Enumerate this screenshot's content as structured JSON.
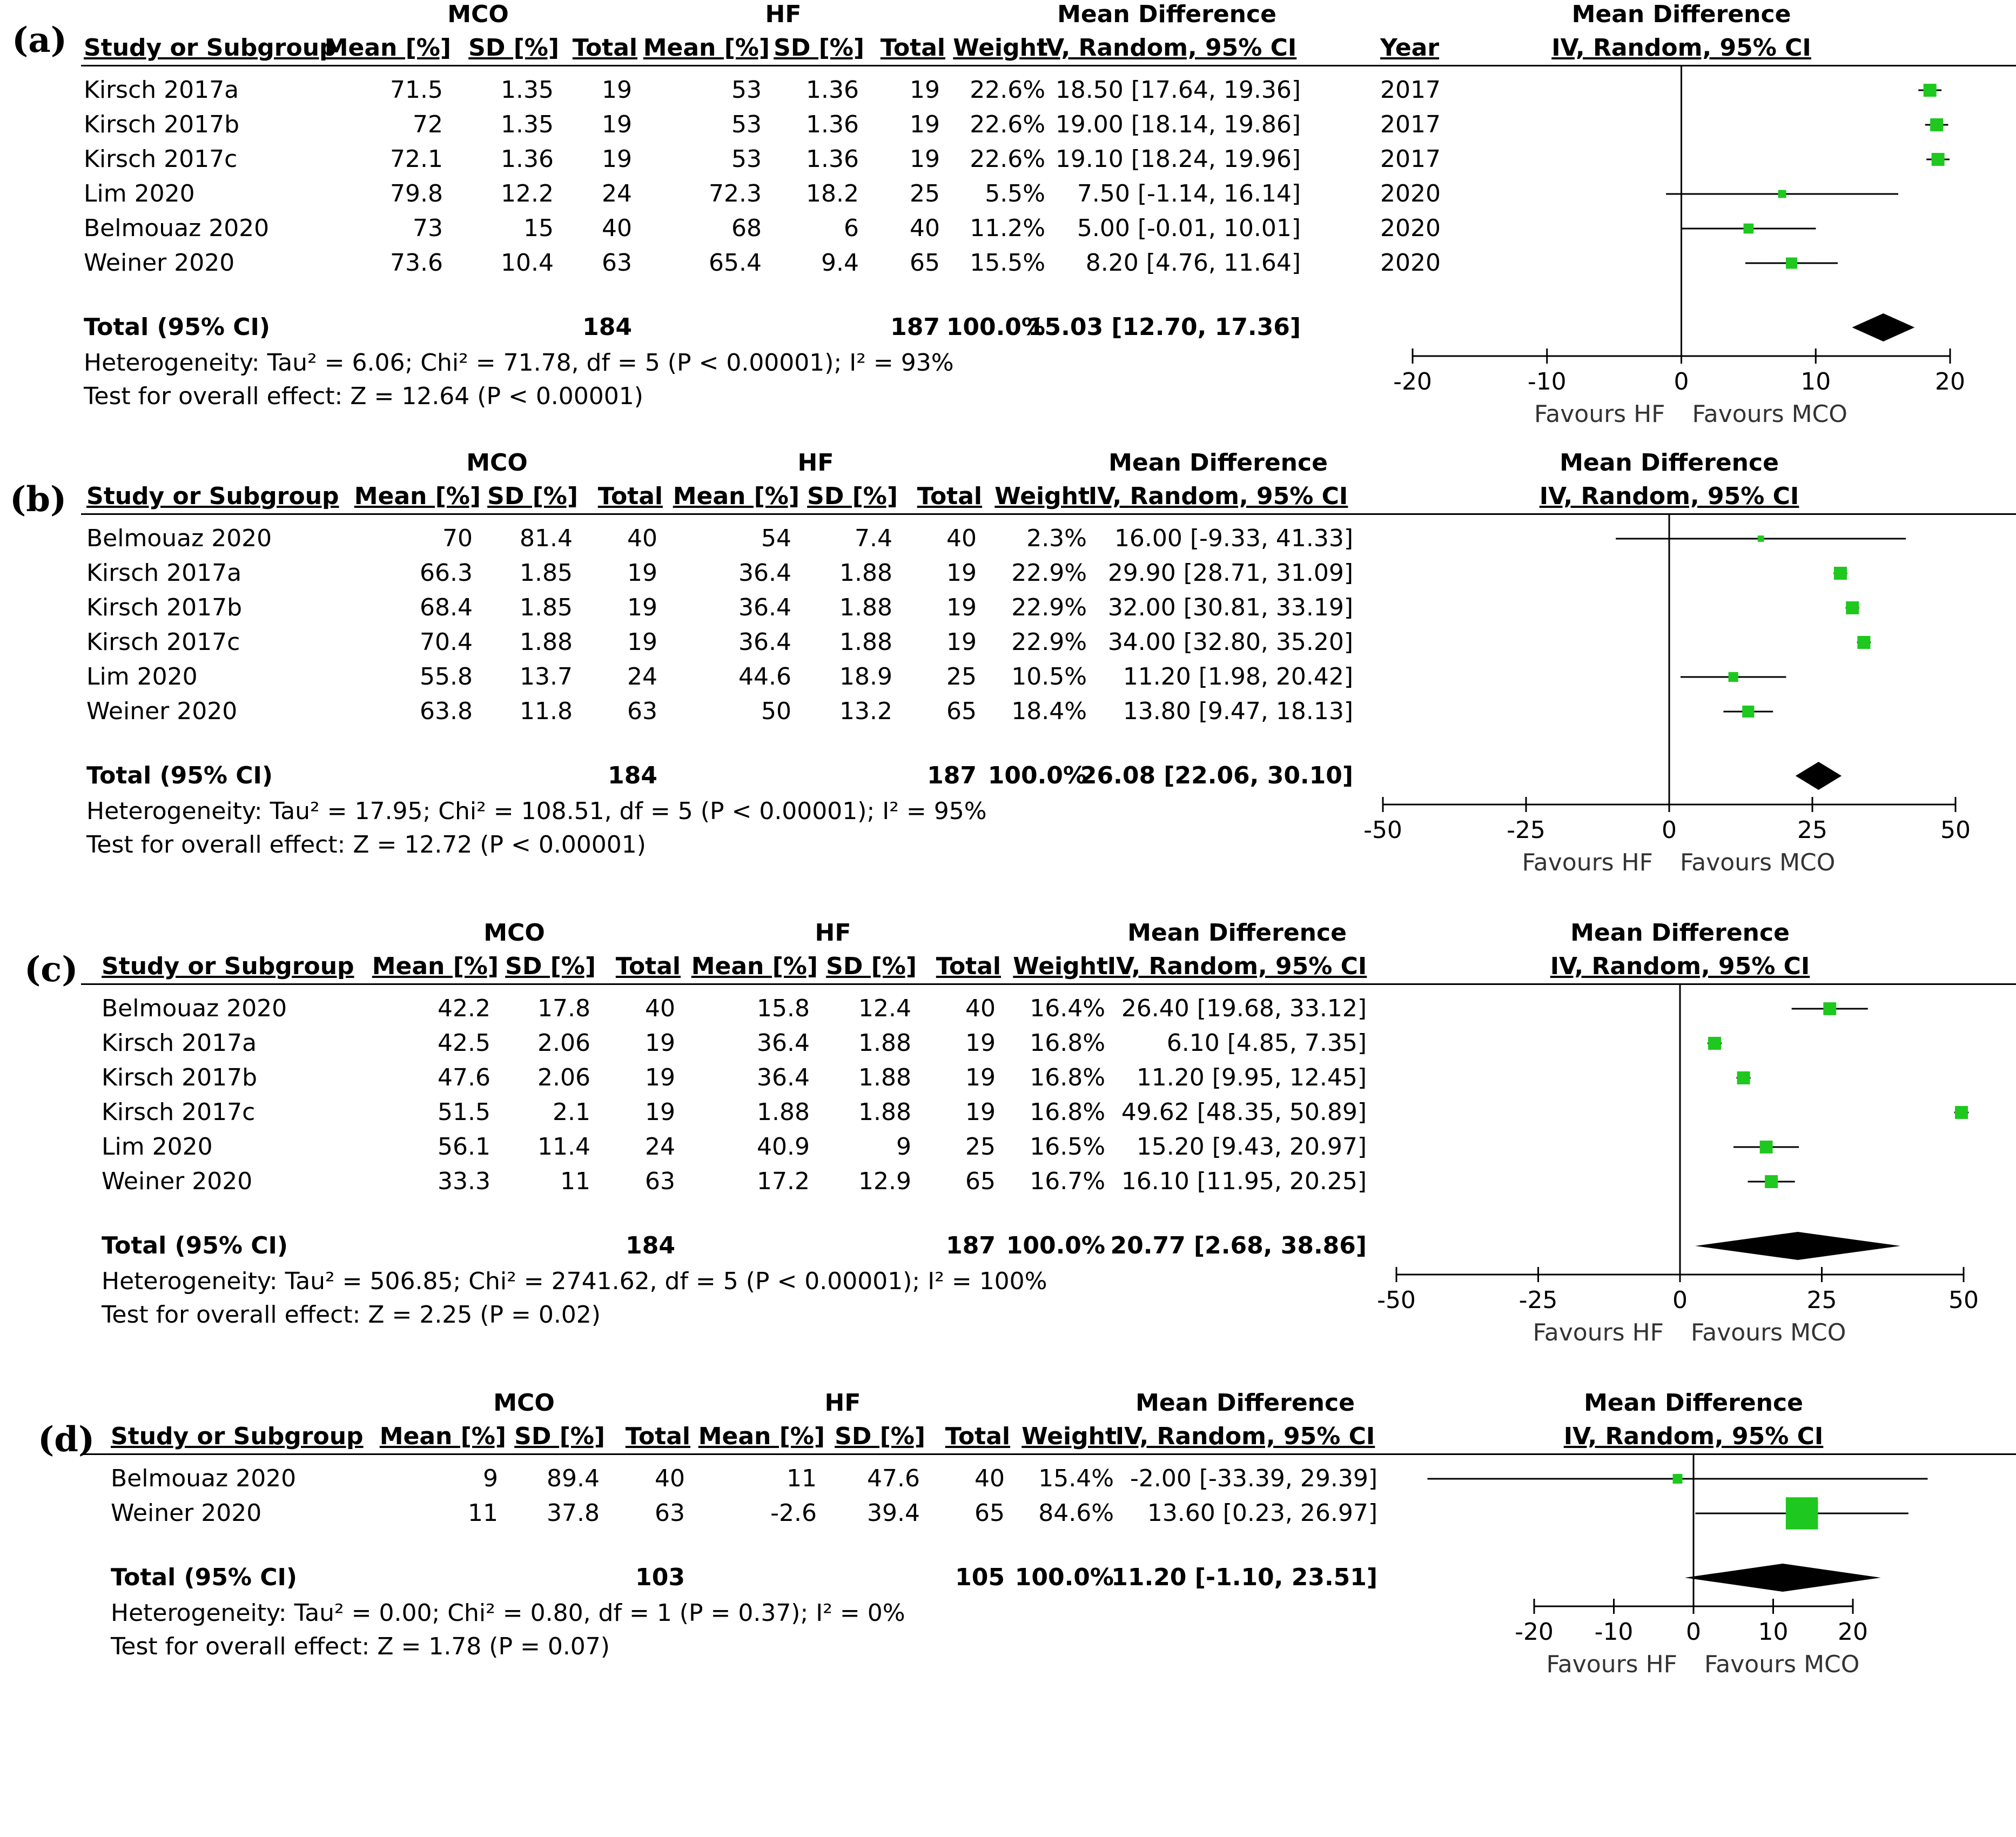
{
  "columns": {
    "study": "Study or Subgroup",
    "mean": "Mean [%]",
    "sd": "SD [%]",
    "total": "Total",
    "weight": "Weight",
    "ci": "IV, Random, 95% CI",
    "year": "Year",
    "group1": "MCO",
    "group2": "HF",
    "effect": "Mean Difference",
    "plot_ci": "IV, Random, 95% CI"
  },
  "panels": [
    {
      "label": "(a)",
      "show_year": true,
      "rows": [
        {
          "study": "Kirsch 2017a",
          "m1": "71.5",
          "sd1": "1.35",
          "n1": "19",
          "m2": "53",
          "sd2": "1.36",
          "n2": "19",
          "weight": "22.6%",
          "ci": "18.50 [17.64, 19.36]",
          "year": "2017"
        },
        {
          "study": "Kirsch 2017b",
          "m1": "72",
          "sd1": "1.35",
          "n1": "19",
          "m2": "53",
          "sd2": "1.36",
          "n2": "19",
          "weight": "22.6%",
          "ci": "19.00 [18.14, 19.86]",
          "year": "2017"
        },
        {
          "study": "Kirsch 2017c",
          "m1": "72.1",
          "sd1": "1.36",
          "n1": "19",
          "m2": "53",
          "sd2": "1.36",
          "n2": "19",
          "weight": "22.6%",
          "ci": "19.10 [18.24, 19.96]",
          "year": "2017"
        },
        {
          "study": "Lim 2020",
          "m1": "79.8",
          "sd1": "12.2",
          "n1": "24",
          "m2": "72.3",
          "sd2": "18.2",
          "n2": "25",
          "weight": "5.5%",
          "ci": "7.50 [-1.14, 16.14]",
          "year": "2020"
        },
        {
          "study": "Belmouaz 2020",
          "m1": "73",
          "sd1": "15",
          "n1": "40",
          "m2": "68",
          "sd2": "6",
          "n2": "40",
          "weight": "11.2%",
          "ci": "5.00 [-0.01, 10.01]",
          "year": "2020"
        },
        {
          "study": "Weiner 2020",
          "m1": "73.6",
          "sd1": "10.4",
          "n1": "63",
          "m2": "65.4",
          "sd2": "9.4",
          "n2": "65",
          "weight": "15.5%",
          "ci": "8.20 [4.76, 11.64]",
          "year": "2020"
        }
      ],
      "total": {
        "label": "Total (95% CI)",
        "n1": "184",
        "n2": "187",
        "weight": "100.0%",
        "ci": "15.03 [12.70, 17.36]"
      },
      "heterogeneity": "Heterogeneity: Tau² = 6.06; Chi² = 71.78, df = 5 (P < 0.00001); I² = 93%",
      "overall": "Test for overall effect: Z = 12.64 (P < 0.00001)",
      "favours_left": "Favours HF",
      "favours_right": "Favours MCO"
    },
    {
      "label": "(b)",
      "show_year": false,
      "rows": [
        {
          "study": "Belmouaz 2020",
          "m1": "70",
          "sd1": "81.4",
          "n1": "40",
          "m2": "54",
          "sd2": "7.4",
          "n2": "40",
          "weight": "2.3%",
          "ci": "16.00 [-9.33, 41.33]"
        },
        {
          "study": "Kirsch 2017a",
          "m1": "66.3",
          "sd1": "1.85",
          "n1": "19",
          "m2": "36.4",
          "sd2": "1.88",
          "n2": "19",
          "weight": "22.9%",
          "ci": "29.90 [28.71, 31.09]"
        },
        {
          "study": "Kirsch 2017b",
          "m1": "68.4",
          "sd1": "1.85",
          "n1": "19",
          "m2": "36.4",
          "sd2": "1.88",
          "n2": "19",
          "weight": "22.9%",
          "ci": "32.00 [30.81, 33.19]"
        },
        {
          "study": "Kirsch 2017c",
          "m1": "70.4",
          "sd1": "1.88",
          "n1": "19",
          "m2": "36.4",
          "sd2": "1.88",
          "n2": "19",
          "weight": "22.9%",
          "ci": "34.00 [32.80, 35.20]"
        },
        {
          "study": "Lim 2020",
          "m1": "55.8",
          "sd1": "13.7",
          "n1": "24",
          "m2": "44.6",
          "sd2": "18.9",
          "n2": "25",
          "weight": "10.5%",
          "ci": "11.20 [1.98, 20.42]"
        },
        {
          "study": "Weiner 2020",
          "m1": "63.8",
          "sd1": "11.8",
          "n1": "63",
          "m2": "50",
          "sd2": "13.2",
          "n2": "65",
          "weight": "18.4%",
          "ci": "13.80 [9.47, 18.13]"
        }
      ],
      "total": {
        "label": "Total (95% CI)",
        "n1": "184",
        "n2": "187",
        "weight": "100.0%",
        "ci": "26.08 [22.06, 30.10]"
      },
      "heterogeneity": "Heterogeneity: Tau² = 17.95; Chi² = 108.51, df = 5 (P < 0.00001); I² = 95%",
      "overall": "Test for overall effect: Z = 12.72 (P < 0.00001)",
      "favours_left": "Favours HF",
      "favours_right": "Favours MCO"
    },
    {
      "label": "(c)",
      "show_year": false,
      "rows": [
        {
          "study": "Belmouaz 2020",
          "m1": "42.2",
          "sd1": "17.8",
          "n1": "40",
          "m2": "15.8",
          "sd2": "12.4",
          "n2": "40",
          "weight": "16.4%",
          "ci": "26.40 [19.68, 33.12]"
        },
        {
          "study": "Kirsch 2017a",
          "m1": "42.5",
          "sd1": "2.06",
          "n1": "19",
          "m2": "36.4",
          "sd2": "1.88",
          "n2": "19",
          "weight": "16.8%",
          "ci": "6.10 [4.85, 7.35]"
        },
        {
          "study": "Kirsch 2017b",
          "m1": "47.6",
          "sd1": "2.06",
          "n1": "19",
          "m2": "36.4",
          "sd2": "1.88",
          "n2": "19",
          "weight": "16.8%",
          "ci": "11.20 [9.95, 12.45]"
        },
        {
          "study": "Kirsch 2017c",
          "m1": "51.5",
          "sd1": "2.1",
          "n1": "19",
          "m2": "1.88",
          "sd2": "1.88",
          "n2": "19",
          "weight": "16.8%",
          "ci": "49.62 [48.35, 50.89]"
        },
        {
          "study": "Lim 2020",
          "m1": "56.1",
          "sd1": "11.4",
          "n1": "24",
          "m2": "40.9",
          "sd2": "9",
          "n2": "25",
          "weight": "16.5%",
          "ci": "15.20 [9.43, 20.97]"
        },
        {
          "study": "Weiner 2020",
          "m1": "33.3",
          "sd1": "11",
          "n1": "63",
          "m2": "17.2",
          "sd2": "12.9",
          "n2": "65",
          "weight": "16.7%",
          "ci": "16.10 [11.95, 20.25]"
        }
      ],
      "total": {
        "label": "Total (95% CI)",
        "n1": "184",
        "n2": "187",
        "weight": "100.0%",
        "ci": "20.77 [2.68, 38.86]"
      },
      "heterogeneity": "Heterogeneity: Tau² = 506.85; Chi² = 2741.62, df = 5 (P < 0.00001); I² = 100%",
      "overall": "Test for overall effect: Z = 2.25 (P = 0.02)",
      "favours_left": "Favours HF",
      "favours_right": "Favours MCO"
    },
    {
      "label": "(d)",
      "show_year": false,
      "rows": [
        {
          "study": "Belmouaz 2020",
          "m1": "9",
          "sd1": "89.4",
          "n1": "40",
          "m2": "11",
          "sd2": "47.6",
          "n2": "40",
          "weight": "15.4%",
          "ci": "-2.00 [-33.39, 29.39]"
        },
        {
          "study": "Weiner 2020",
          "m1": "11",
          "sd1": "37.8",
          "n1": "63",
          "m2": "-2.6",
          "sd2": "39.4",
          "n2": "65",
          "weight": "84.6%",
          "ci": "13.60 [0.23, 26.97]"
        }
      ],
      "total": {
        "label": "Total (95% CI)",
        "n1": "103",
        "n2": "105",
        "weight": "100.0%",
        "ci": "11.20 [-1.10, 23.51]"
      },
      "heterogeneity": "Heterogeneity: Tau² = 0.00; Chi² = 0.80, df = 1 (P = 0.37); I² = 0%",
      "overall": "Test for overall effect: Z = 1.78 (P = 0.07)",
      "favours_left": "Favours HF",
      "favours_right": "Favours MCO"
    }
  ],
  "colors": {
    "marker": "#1ec81e",
    "diamond": "#000000",
    "line": "#000000"
  },
  "chart_data": [
    {
      "type": "forest",
      "title": "(a)",
      "xlabel_left": "Favours HF",
      "xlabel_right": "Favours MCO",
      "xlim": [
        -20,
        20
      ],
      "ticks": [
        -20,
        -10,
        0,
        10,
        20
      ],
      "studies": [
        {
          "name": "Kirsch 2017a",
          "est": 18.5,
          "lo": 17.64,
          "hi": 19.36,
          "weight": 22.6
        },
        {
          "name": "Kirsch 2017b",
          "est": 19.0,
          "lo": 18.14,
          "hi": 19.86,
          "weight": 22.6
        },
        {
          "name": "Kirsch 2017c",
          "est": 19.1,
          "lo": 18.24,
          "hi": 19.96,
          "weight": 22.6
        },
        {
          "name": "Lim 2020",
          "est": 7.5,
          "lo": -1.14,
          "hi": 16.14,
          "weight": 5.5
        },
        {
          "name": "Belmouaz 2020",
          "est": 5.0,
          "lo": -0.01,
          "hi": 10.01,
          "weight": 11.2
        },
        {
          "name": "Weiner 2020",
          "est": 8.2,
          "lo": 4.76,
          "hi": 11.64,
          "weight": 15.5
        }
      ],
      "pooled": {
        "est": 15.03,
        "lo": 12.7,
        "hi": 17.36
      }
    },
    {
      "type": "forest",
      "title": "(b)",
      "xlabel_left": "Favours HF",
      "xlabel_right": "Favours MCO",
      "xlim": [
        -50,
        50
      ],
      "ticks": [
        -50,
        -25,
        0,
        25,
        50
      ],
      "studies": [
        {
          "name": "Belmouaz 2020",
          "est": 16.0,
          "lo": -9.33,
          "hi": 41.33,
          "weight": 2.3
        },
        {
          "name": "Kirsch 2017a",
          "est": 29.9,
          "lo": 28.71,
          "hi": 31.09,
          "weight": 22.9
        },
        {
          "name": "Kirsch 2017b",
          "est": 32.0,
          "lo": 30.81,
          "hi": 33.19,
          "weight": 22.9
        },
        {
          "name": "Kirsch 2017c",
          "est": 34.0,
          "lo": 32.8,
          "hi": 35.2,
          "weight": 22.9
        },
        {
          "name": "Lim 2020",
          "est": 11.2,
          "lo": 1.98,
          "hi": 20.42,
          "weight": 10.5
        },
        {
          "name": "Weiner 2020",
          "est": 13.8,
          "lo": 9.47,
          "hi": 18.13,
          "weight": 18.4
        }
      ],
      "pooled": {
        "est": 26.08,
        "lo": 22.06,
        "hi": 30.1
      }
    },
    {
      "type": "forest",
      "title": "(c)",
      "xlabel_left": "Favours HF",
      "xlabel_right": "Favours MCO",
      "xlim": [
        -50,
        50
      ],
      "ticks": [
        -50,
        -25,
        0,
        25,
        50
      ],
      "studies": [
        {
          "name": "Belmouaz 2020",
          "est": 26.4,
          "lo": 19.68,
          "hi": 33.12,
          "weight": 16.4
        },
        {
          "name": "Kirsch 2017a",
          "est": 6.1,
          "lo": 4.85,
          "hi": 7.35,
          "weight": 16.8
        },
        {
          "name": "Kirsch 2017b",
          "est": 11.2,
          "lo": 9.95,
          "hi": 12.45,
          "weight": 16.8
        },
        {
          "name": "Kirsch 2017c",
          "est": 49.62,
          "lo": 48.35,
          "hi": 50.89,
          "weight": 16.8
        },
        {
          "name": "Lim 2020",
          "est": 15.2,
          "lo": 9.43,
          "hi": 20.97,
          "weight": 16.5
        },
        {
          "name": "Weiner 2020",
          "est": 16.1,
          "lo": 11.95,
          "hi": 20.25,
          "weight": 16.7
        }
      ],
      "pooled": {
        "est": 20.77,
        "lo": 2.68,
        "hi": 38.86
      }
    },
    {
      "type": "forest",
      "title": "(d)",
      "xlabel_left": "Favours HF",
      "xlabel_right": "Favours MCO",
      "xlim": [
        -20,
        20
      ],
      "ticks": [
        -20,
        -10,
        0,
        10,
        20
      ],
      "studies": [
        {
          "name": "Belmouaz 2020",
          "est": -2.0,
          "lo": -33.39,
          "hi": 29.39,
          "weight": 15.4
        },
        {
          "name": "Weiner 2020",
          "est": 13.6,
          "lo": 0.23,
          "hi": 26.97,
          "weight": 84.6
        }
      ],
      "pooled": {
        "est": 11.2,
        "lo": -1.1,
        "hi": 23.51
      }
    }
  ]
}
